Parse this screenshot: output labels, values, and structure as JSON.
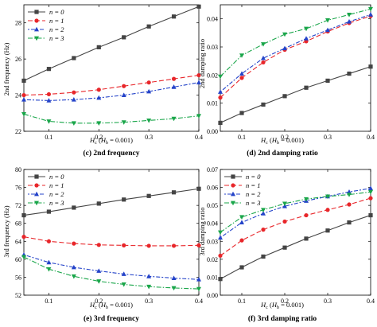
{
  "colors": {
    "n0": "#444444",
    "n1": "#e8262a",
    "n2": "#2443c9",
    "n3": "#1aa64a"
  },
  "legend_labels": [
    "n = 0",
    "n = 1",
    "n = 2",
    "n = 3"
  ],
  "chart_data": [
    {
      "id": "c",
      "type": "line",
      "caption": "(c) 2nd frequency",
      "xlabel": "Hc (Hb = 0.001)",
      "ylabel": "2nd frequency (Hz)",
      "xlim": [
        0.05,
        0.4
      ],
      "ylim": [
        22,
        29
      ],
      "xticks": [
        "0.1",
        "0.2",
        "0.3",
        "0.4"
      ],
      "yticks": [
        "22",
        "24",
        "26",
        "28"
      ],
      "legend": "top-left",
      "x": [
        0.05,
        0.1,
        0.15,
        0.2,
        0.25,
        0.3,
        0.35,
        0.4
      ],
      "series": [
        {
          "name": "n = 0",
          "marker": "square",
          "values": [
            24.8,
            25.45,
            26.05,
            26.65,
            27.2,
            27.8,
            28.35,
            28.9
          ]
        },
        {
          "name": "n = 1",
          "marker": "circle",
          "values": [
            24.0,
            24.05,
            24.15,
            24.3,
            24.5,
            24.7,
            24.9,
            25.1
          ]
        },
        {
          "name": "n = 2",
          "marker": "triangle-up",
          "values": [
            23.75,
            23.7,
            23.75,
            23.85,
            24.0,
            24.2,
            24.45,
            24.7
          ]
        },
        {
          "name": "n = 3",
          "marker": "triangle-down",
          "values": [
            22.95,
            22.55,
            22.45,
            22.45,
            22.5,
            22.6,
            22.7,
            22.85
          ]
        }
      ]
    },
    {
      "id": "d",
      "type": "line",
      "caption": "(d) 2nd damping ratio",
      "xlabel": "Hc (Hb = 0.001)",
      "ylabel": "2nd damping ratio",
      "xlim": [
        0.05,
        0.4
      ],
      "ylim": [
        0.0,
        0.045
      ],
      "xticks": [
        "0.1",
        "0.2",
        "0.3",
        "0.4"
      ],
      "yticks": [
        "0.00",
        "0.01",
        "0.02",
        "0.03",
        "0.04"
      ],
      "legend": "none",
      "x": [
        0.05,
        0.1,
        0.15,
        0.2,
        0.25,
        0.3,
        0.35,
        0.4
      ],
      "series": [
        {
          "name": "n = 0",
          "marker": "square",
          "values": [
            0.003,
            0.0065,
            0.0095,
            0.0125,
            0.0155,
            0.018,
            0.0205,
            0.023
          ]
        },
        {
          "name": "n = 1",
          "marker": "circle",
          "values": [
            0.012,
            0.019,
            0.0245,
            0.029,
            0.032,
            0.0355,
            0.0385,
            0.041
          ]
        },
        {
          "name": "n = 2",
          "marker": "triangle-up",
          "values": [
            0.014,
            0.0205,
            0.026,
            0.0295,
            0.033,
            0.036,
            0.039,
            0.0415
          ]
        },
        {
          "name": "n = 3",
          "marker": "triangle-down",
          "values": [
            0.0195,
            0.027,
            0.031,
            0.0345,
            0.0365,
            0.0395,
            0.0415,
            0.0435
          ]
        }
      ]
    },
    {
      "id": "e",
      "type": "line",
      "caption": "(e) 3rd frequency",
      "xlabel": "Hc (Hb = 0.001)",
      "ylabel": "3rd frequency (Hz)",
      "xlim": [
        0.05,
        0.4
      ],
      "ylim": [
        52,
        80
      ],
      "xticks": [
        "0.1",
        "0.2",
        "0.3",
        "0.4"
      ],
      "yticks": [
        "52",
        "56",
        "60",
        "64",
        "68",
        "72",
        "76",
        "80"
      ],
      "legend": "top-left",
      "x": [
        0.05,
        0.1,
        0.15,
        0.2,
        0.25,
        0.3,
        0.35,
        0.4
      ],
      "series": [
        {
          "name": "n = 0",
          "marker": "square",
          "values": [
            69.8,
            70.6,
            71.5,
            72.4,
            73.3,
            74.1,
            74.9,
            75.7
          ]
        },
        {
          "name": "n = 1",
          "marker": "circle",
          "values": [
            65.0,
            64.0,
            63.5,
            63.2,
            63.1,
            63.0,
            63.0,
            63.1
          ]
        },
        {
          "name": "n = 2",
          "marker": "triangle-up",
          "values": [
            61.0,
            59.3,
            58.2,
            57.4,
            56.7,
            56.2,
            55.8,
            55.5
          ]
        },
        {
          "name": "n = 3",
          "marker": "triangle-down",
          "values": [
            60.5,
            57.8,
            56.2,
            55.1,
            54.4,
            53.9,
            53.6,
            53.4
          ]
        }
      ]
    },
    {
      "id": "f",
      "type": "line",
      "caption": "(f) 3rd damping ratio",
      "xlabel": "Hc (Hb = 0.001)",
      "ylabel": "3rd damping ratio",
      "xlim": [
        0.05,
        0.4
      ],
      "ylim": [
        0.0,
        0.07
      ],
      "xticks": [
        "0.1",
        "0.2",
        "0.3",
        "0.4"
      ],
      "yticks": [
        "0.00",
        "0.01",
        "0.02",
        "0.03",
        "0.04",
        "0.05",
        "0.06",
        "0.07"
      ],
      "legend": "top-left",
      "x": [
        0.05,
        0.1,
        0.15,
        0.2,
        0.25,
        0.3,
        0.35,
        0.4
      ],
      "series": [
        {
          "name": "n = 0",
          "marker": "square",
          "values": [
            0.009,
            0.0155,
            0.0215,
            0.0265,
            0.0315,
            0.036,
            0.0405,
            0.0445
          ]
        },
        {
          "name": "n = 1",
          "marker": "circle",
          "values": [
            0.022,
            0.0305,
            0.0365,
            0.041,
            0.0445,
            0.0475,
            0.0505,
            0.054
          ]
        },
        {
          "name": "n = 2",
          "marker": "triangle-up",
          "values": [
            0.032,
            0.0405,
            0.0455,
            0.0495,
            0.0525,
            0.055,
            0.0575,
            0.0595
          ]
        },
        {
          "name": "n = 3",
          "marker": "triangle-down",
          "values": [
            0.035,
            0.0435,
            0.0475,
            0.051,
            0.0535,
            0.055,
            0.056,
            0.0575
          ]
        }
      ]
    }
  ]
}
